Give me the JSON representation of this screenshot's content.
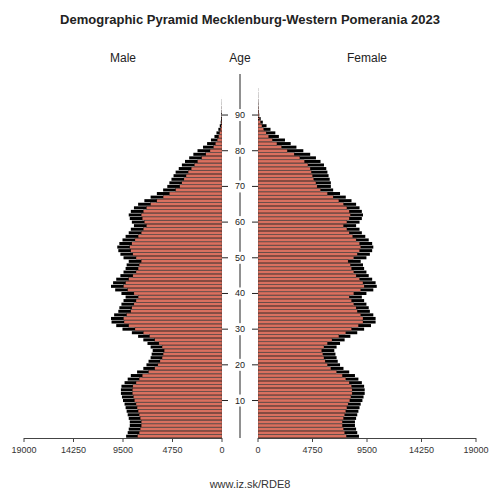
{
  "chart_data": {
    "type": "bar",
    "orientation": "horizontal",
    "title": "Demographic Pyramid Mecklenburg-Western Pomerania 2023",
    "y_label": "Age",
    "annotations": [
      "www.iz.sk/RDE8"
    ],
    "grid": false,
    "categories": [
      0,
      1,
      2,
      3,
      4,
      5,
      6,
      7,
      8,
      9,
      10,
      11,
      12,
      13,
      14,
      15,
      16,
      17,
      18,
      19,
      20,
      21,
      22,
      23,
      24,
      25,
      26,
      27,
      28,
      29,
      30,
      31,
      32,
      33,
      34,
      35,
      36,
      37,
      38,
      39,
      40,
      41,
      42,
      43,
      44,
      45,
      46,
      47,
      48,
      49,
      50,
      51,
      52,
      53,
      54,
      55,
      56,
      57,
      58,
      59,
      60,
      61,
      62,
      63,
      64,
      65,
      66,
      67,
      68,
      69,
      70,
      71,
      72,
      73,
      74,
      75,
      76,
      77,
      78,
      79,
      80,
      81,
      82,
      83,
      84,
      85,
      86,
      87,
      88,
      89,
      90,
      91,
      92,
      93,
      94,
      95,
      96,
      97,
      98,
      99,
      100
    ],
    "ylim": [
      -0.5,
      101.5
    ],
    "yticks": [
      10,
      20,
      30,
      40,
      50,
      60,
      70,
      80,
      90
    ],
    "xlim": [
      0,
      19000
    ],
    "xticks": [
      0,
      4750,
      9500,
      14250,
      19000
    ],
    "series": [
      {
        "color": "#000000",
        "values": [
          9200,
          9050,
          8950,
          8850,
          8850,
          8950,
          9050,
          9150,
          9250,
          9350,
          9500,
          9600,
          9700,
          9700,
          9650,
          9350,
          9050,
          8750,
          8150,
          7550,
          7250,
          7050,
          6850,
          6750,
          6650,
          6850,
          7150,
          7550,
          8050,
          8650,
          9550,
          10150,
          10600,
          10650,
          10350,
          9950,
          9850,
          9650,
          9450,
          9250,
          9650,
          10250,
          10650,
          10450,
          10150,
          9750,
          9450,
          9250,
          9150,
          8950,
          9450,
          9750,
          9950,
          10050,
          9850,
          9550,
          9250,
          8950,
          8750,
          8450,
          8650,
          8850,
          8950,
          8750,
          8450,
          8050,
          7450,
          6850,
          6250,
          5650,
          5250,
          5050,
          4850,
          4650,
          4450,
          4150,
          3850,
          3550,
          3150,
          2750,
          2350,
          1820,
          1430,
          1060,
          725,
          530,
          350,
          215,
          127,
          73,
          37,
          19,
          10,
          5,
          2,
          1,
          0,
          0,
          0,
          0,
          0
        ]
      },
      {
        "name": "Male",
        "color": "#d9705f",
        "values": [
          8100,
          7950,
          7850,
          7750,
          7750,
          7850,
          7950,
          8050,
          8150,
          8250,
          8400,
          8500,
          8600,
          8600,
          8550,
          8250,
          7950,
          7650,
          7050,
          6450,
          6150,
          5950,
          5750,
          5650,
          5550,
          5750,
          6050,
          6450,
          6950,
          7550,
          8350,
          8950,
          9400,
          9450,
          9150,
          8750,
          8650,
          8450,
          8250,
          8050,
          8450,
          9050,
          9450,
          9250,
          8950,
          8550,
          8250,
          8050,
          7950,
          7750,
          8250,
          8550,
          8750,
          8850,
          8650,
          8350,
          8050,
          7750,
          7550,
          7250,
          7450,
          7650,
          7750,
          7550,
          7250,
          6850,
          6250,
          5650,
          5050,
          4450,
          4050,
          3850,
          3650,
          3450,
          3250,
          2950,
          2650,
          2350,
          1950,
          1550,
          1150,
          820,
          630,
          460,
          325,
          230,
          150,
          95,
          57,
          33,
          17,
          9,
          5,
          2,
          1,
          0,
          0,
          0,
          0,
          0,
          0
        ]
      },
      {
        "color": "#000000",
        "values": [
          8800,
          8650,
          8550,
          8450,
          8450,
          8550,
          8650,
          8750,
          8850,
          8950,
          9100,
          9200,
          9300,
          9300,
          9250,
          9050,
          8750,
          8450,
          7950,
          7450,
          7150,
          6950,
          6850,
          6750,
          6650,
          6850,
          7150,
          7550,
          8050,
          8650,
          9250,
          9850,
          10250,
          10250,
          10050,
          9750,
          9650,
          9450,
          9250,
          9050,
          9450,
          10050,
          10350,
          10250,
          9950,
          9650,
          9450,
          9250,
          9150,
          8950,
          9450,
          9750,
          9950,
          10050,
          9950,
          9650,
          9350,
          9050,
          8850,
          8550,
          8850,
          9050,
          9150,
          9050,
          8850,
          8550,
          8150,
          7650,
          7150,
          6550,
          6350,
          6350,
          6250,
          6150,
          6050,
          5950,
          5750,
          5450,
          5050,
          4550,
          3950,
          3350,
          2850,
          2350,
          1820,
          1510,
          1090,
          745,
          420,
          235,
          112,
          63,
          31,
          16,
          8,
          3,
          2,
          1,
          0,
          0,
          0
        ]
      },
      {
        "name": "Female",
        "color": "#d9705f",
        "values": [
          7700,
          7550,
          7450,
          7350,
          7350,
          7450,
          7550,
          7650,
          7750,
          7850,
          8000,
          8100,
          8200,
          8200,
          8150,
          7950,
          7650,
          7350,
          6850,
          6350,
          6050,
          5850,
          5750,
          5650,
          5550,
          5750,
          6050,
          6450,
          7050,
          7650,
          8150,
          8750,
          9150,
          9150,
          8950,
          8650,
          8550,
          8350,
          8150,
          7950,
          8350,
          8950,
          9250,
          9150,
          8850,
          8550,
          8350,
          8150,
          8050,
          7850,
          8350,
          8650,
          8850,
          8950,
          8850,
          8550,
          8250,
          7950,
          7750,
          7450,
          7750,
          7950,
          8050,
          7950,
          7750,
          7450,
          7050,
          6550,
          6050,
          5450,
          5150,
          5050,
          4850,
          4750,
          4650,
          4550,
          4350,
          4050,
          3650,
          3150,
          2550,
          2050,
          1650,
          1250,
          920,
          710,
          490,
          345,
          220,
          135,
          72,
          43,
          21,
          11,
          6,
          3,
          2,
          1,
          0,
          0,
          0
        ]
      }
    ]
  }
}
